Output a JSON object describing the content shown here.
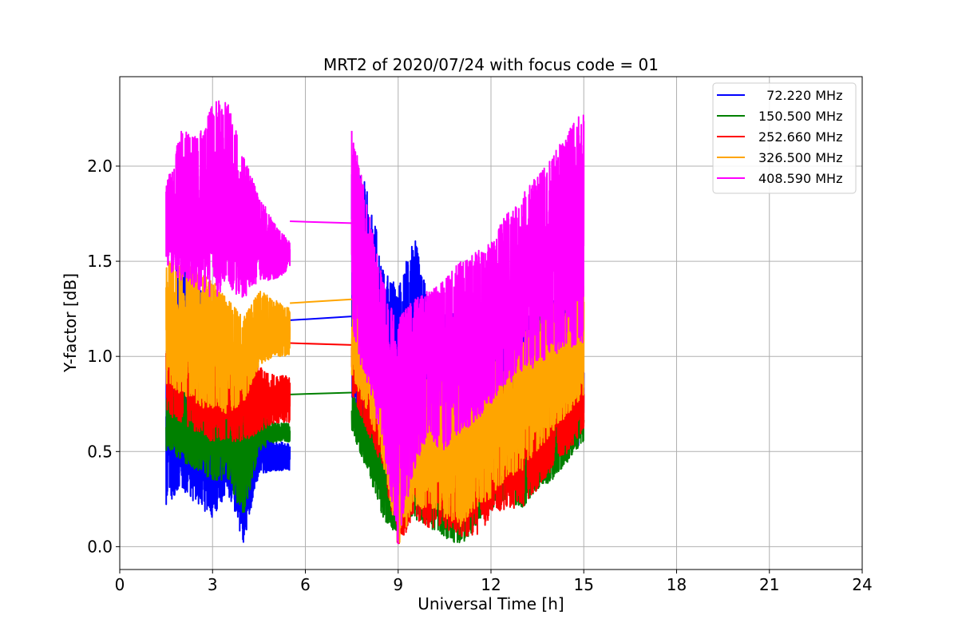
{
  "chart_data": {
    "type": "line",
    "title": "MRT2 of 2020/07/24 with focus code = 01",
    "xlabel": "Universal Time [h]",
    "ylabel": "Y-factor [dB]",
    "xlim": [
      0,
      24
    ],
    "ylim": [
      -0.12,
      2.47
    ],
    "xticks": [
      0,
      3,
      6,
      9,
      12,
      15,
      18,
      21,
      24
    ],
    "xtick_labels": [
      "0",
      "3",
      "6",
      "9",
      "12",
      "15",
      "18",
      "21",
      "24"
    ],
    "yticks": [
      0.0,
      0.5,
      1.0,
      1.5,
      2.0
    ],
    "ytick_labels": [
      "0.0",
      "0.5",
      "1.0",
      "1.5",
      "2.0"
    ],
    "grid": true,
    "legend_position": "top-right",
    "series": [
      {
        "name": "  72.220 MHz",
        "color": "#0000ff",
        "segments": [
          {
            "x": [
              1.5,
              2.0,
              2.5,
              3.0,
              3.5,
              4.0,
              4.5,
              5.0,
              5.5
            ],
            "lower": [
              0.22,
              0.3,
              0.22,
              0.15,
              0.28,
              0.02,
              0.38,
              0.4,
              0.4
            ],
            "upper": [
              1.45,
              1.55,
              1.4,
              1.25,
              1.05,
              0.95,
              0.7,
              0.55,
              0.55
            ],
            "mid": [
              0.55,
              0.6,
              0.55,
              0.45,
              0.5,
              0.4,
              0.5,
              0.48,
              0.48
            ]
          },
          {
            "x": [
              7.5,
              8.0,
              8.5,
              9.0,
              9.5,
              10.0,
              10.5,
              11.0,
              11.5,
              12.0,
              12.5,
              13.0,
              13.5,
              14.0,
              14.5,
              15.0
            ],
            "lower": [
              0.75,
              0.55,
              0.35,
              0.2,
              0.3,
              0.25,
              0.3,
              0.35,
              0.3,
              0.3,
              0.45,
              0.35,
              0.4,
              0.45,
              0.5,
              0.55
            ],
            "upper": [
              2.05,
              1.9,
              1.5,
              1.35,
              1.65,
              1.3,
              1.25,
              1.2,
              1.15,
              1.2,
              1.2,
              1.2,
              1.25,
              1.3,
              1.3,
              1.25
            ],
            "mid": [
              1.15,
              0.9,
              0.7,
              0.65,
              0.8,
              0.75,
              0.7,
              0.7,
              0.65,
              0.65,
              0.7,
              0.7,
              0.75,
              0.8,
              0.85,
              0.9
            ]
          }
        ],
        "gap_line": [
          [
            5.5,
            1.19
          ],
          [
            7.5,
            1.21
          ]
        ]
      },
      {
        "name": "150.500 MHz",
        "color": "#008000",
        "segments": [
          {
            "x": [
              1.5,
              2.0,
              2.5,
              3.0,
              3.5,
              4.0,
              4.5,
              5.0,
              5.5
            ],
            "lower": [
              0.5,
              0.45,
              0.4,
              0.35,
              0.35,
              0.15,
              0.5,
              0.55,
              0.55
            ],
            "upper": [
              0.8,
              0.85,
              0.85,
              0.8,
              0.8,
              0.75,
              0.7,
              0.65,
              0.65
            ],
            "mid": [
              0.62,
              0.62,
              0.6,
              0.58,
              0.58,
              0.5,
              0.6,
              0.6,
              0.6
            ]
          },
          {
            "x": [
              7.5,
              8.0,
              8.5,
              9.0,
              9.5,
              10.0,
              10.5,
              11.0,
              11.5,
              12.0,
              12.5,
              13.0,
              13.5,
              14.0,
              14.5,
              15.0
            ],
            "lower": [
              0.6,
              0.4,
              0.15,
              0.05,
              0.15,
              0.1,
              0.05,
              0.0,
              0.1,
              0.2,
              0.25,
              0.2,
              0.3,
              0.35,
              0.45,
              0.55
            ],
            "upper": [
              0.8,
              0.7,
              0.6,
              0.7,
              0.65,
              0.6,
              0.6,
              0.55,
              0.55,
              0.6,
              0.65,
              0.65,
              0.7,
              0.75,
              0.75,
              0.8
            ],
            "mid": [
              0.7,
              0.55,
              0.4,
              0.4,
              0.4,
              0.35,
              0.3,
              0.3,
              0.35,
              0.4,
              0.45,
              0.45,
              0.5,
              0.55,
              0.6,
              0.65
            ]
          }
        ],
        "gap_line": [
          [
            5.5,
            0.8
          ],
          [
            7.5,
            0.81
          ]
        ]
      },
      {
        "name": "252.660 MHz",
        "color": "#ff0000",
        "segments": [
          {
            "x": [
              1.5,
              2.0,
              2.5,
              3.0,
              3.5,
              4.0,
              4.5,
              5.0,
              5.5
            ],
            "lower": [
              0.7,
              0.65,
              0.6,
              0.55,
              0.55,
              0.55,
              0.6,
              0.65,
              0.65
            ],
            "upper": [
              1.2,
              1.2,
              1.15,
              1.15,
              1.1,
              1.0,
              0.95,
              0.9,
              0.9
            ],
            "mid": [
              0.95,
              0.92,
              0.88,
              0.85,
              0.82,
              0.78,
              0.78,
              0.75,
              0.75
            ]
          },
          {
            "x": [
              7.5,
              8.0,
              8.5,
              9.0,
              9.5,
              10.0,
              10.5,
              11.0,
              11.5,
              12.0,
              12.5,
              13.0,
              13.5,
              14.0,
              14.5,
              15.0
            ],
            "lower": [
              0.8,
              0.6,
              0.4,
              0.0,
              0.15,
              0.1,
              0.1,
              0.05,
              0.05,
              0.15,
              0.2,
              0.2,
              0.3,
              0.4,
              0.5,
              0.6
            ],
            "upper": [
              1.1,
              1.0,
              0.9,
              0.85,
              0.8,
              0.75,
              0.7,
              0.7,
              0.75,
              0.8,
              0.85,
              0.9,
              0.95,
              1.0,
              1.0,
              1.05
            ],
            "mid": [
              0.95,
              0.8,
              0.6,
              0.5,
              0.5,
              0.45,
              0.4,
              0.4,
              0.4,
              0.45,
              0.5,
              0.55,
              0.6,
              0.7,
              0.75,
              0.8
            ]
          }
        ],
        "gap_line": [
          [
            5.5,
            1.07
          ],
          [
            7.5,
            1.06
          ]
        ]
      },
      {
        "name": "326.500 MHz",
        "color": "#ffa500",
        "segments": [
          {
            "x": [
              1.5,
              2.0,
              2.5,
              3.0,
              3.5,
              4.0,
              4.5,
              5.0,
              5.5
            ],
            "lower": [
              0.85,
              0.8,
              0.75,
              0.7,
              0.7,
              0.75,
              0.95,
              1.0,
              1.0
            ],
            "upper": [
              1.5,
              1.5,
              1.45,
              1.4,
              1.3,
              1.2,
              1.35,
              1.3,
              1.25
            ],
            "mid": [
              1.15,
              1.12,
              1.08,
              1.02,
              0.98,
              0.95,
              1.12,
              1.12,
              1.1
            ]
          },
          {
            "x": [
              7.5,
              8.0,
              8.5,
              9.0,
              9.5,
              10.0,
              10.5,
              11.0,
              11.5,
              12.0,
              12.5,
              13.0,
              13.5,
              14.0,
              14.5,
              15.0
            ],
            "lower": [
              0.9,
              0.7,
              0.45,
              0.0,
              0.2,
              0.2,
              0.15,
              0.1,
              0.2,
              0.25,
              0.35,
              0.4,
              0.5,
              0.6,
              0.7,
              0.8
            ],
            "upper": [
              1.4,
              1.3,
              1.1,
              1.0,
              0.95,
              0.9,
              0.9,
              0.9,
              0.95,
              1.0,
              1.05,
              1.15,
              1.2,
              1.3,
              1.35,
              1.4
            ],
            "mid": [
              1.15,
              0.95,
              0.75,
              0.6,
              0.6,
              0.55,
              0.55,
              0.55,
              0.6,
              0.65,
              0.7,
              0.8,
              0.85,
              0.95,
              1.0,
              1.1
            ]
          }
        ],
        "gap_line": [
          [
            5.5,
            1.28
          ],
          [
            7.5,
            1.3
          ]
        ]
      },
      {
        "name": "408.590 MHz",
        "color": "#ff00ff",
        "segments": [
          {
            "x": [
              1.5,
              2.0,
              2.5,
              3.0,
              3.5,
              4.0,
              4.5,
              5.0,
              5.5
            ],
            "lower": [
              1.45,
              1.4,
              1.35,
              1.3,
              1.35,
              1.3,
              1.4,
              1.4,
              1.45
            ],
            "upper": [
              1.9,
              2.2,
              2.15,
              2.35,
              2.35,
              2.05,
              1.85,
              1.7,
              1.6
            ],
            "mid": [
              1.7,
              1.75,
              1.7,
              1.8,
              1.75,
              1.6,
              1.55,
              1.52,
              1.52
            ]
          },
          {
            "x": [
              7.5,
              8.0,
              8.5,
              9.0,
              9.5,
              10.0,
              10.5,
              11.0,
              11.5,
              12.0,
              12.5,
              13.0,
              13.5,
              14.0,
              14.5,
              15.0
            ],
            "lower": [
              1.1,
              0.85,
              0.55,
              0.0,
              0.4,
              0.55,
              0.5,
              0.6,
              0.65,
              0.75,
              0.85,
              0.9,
              0.95,
              1.0,
              1.05,
              1.05
            ],
            "upper": [
              2.2,
              1.8,
              1.4,
              1.2,
              1.3,
              1.35,
              1.4,
              1.5,
              1.55,
              1.6,
              1.75,
              1.85,
              1.95,
              2.05,
              2.2,
              2.3
            ],
            "mid": [
              1.55,
              1.25,
              0.95,
              0.85,
              0.95,
              1.0,
              1.0,
              1.05,
              1.1,
              1.15,
              1.25,
              1.35,
              1.45,
              1.55,
              1.65,
              1.7
            ]
          }
        ],
        "gap_line": [
          [
            5.5,
            1.71
          ],
          [
            7.5,
            1.7
          ]
        ]
      }
    ]
  }
}
